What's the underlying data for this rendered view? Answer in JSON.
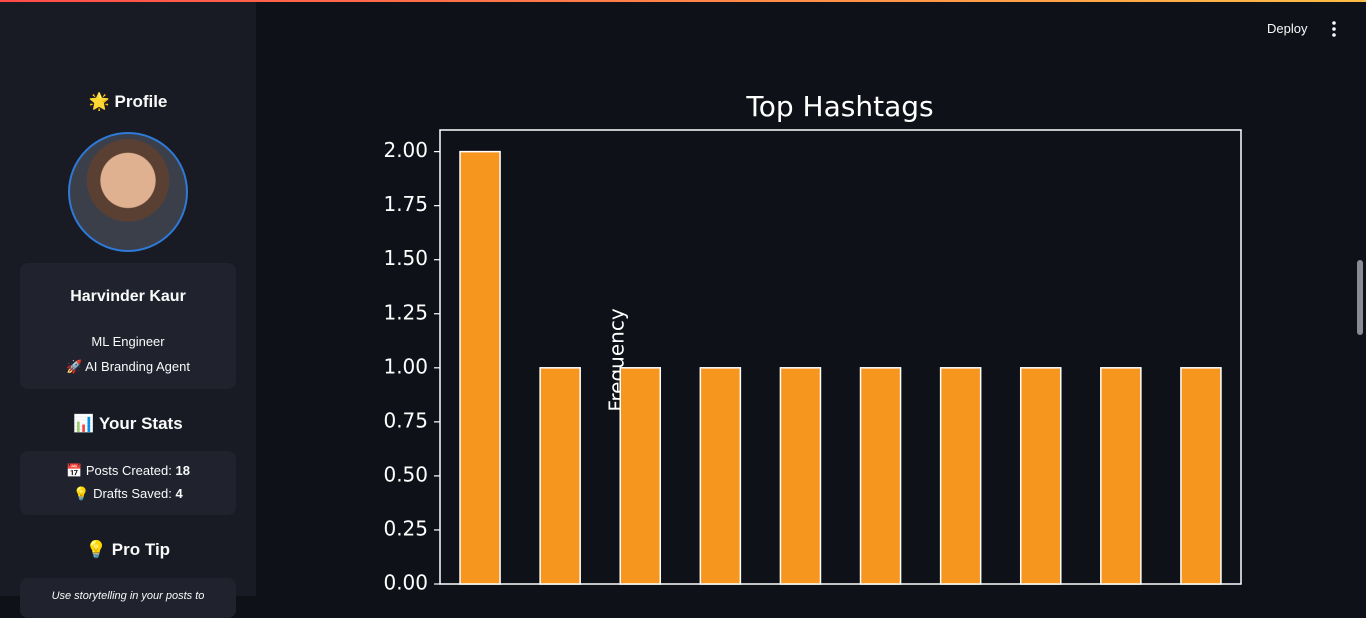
{
  "header": {
    "deploy": "Deploy"
  },
  "sidebar": {
    "profile_heading": "🌟 Profile",
    "name": "Harvinder Kaur",
    "role": "ML Engineer",
    "tagline": "🚀 AI Branding Agent",
    "stats_heading": "📊 Your Stats",
    "stats": [
      {
        "label": "📅 Posts Created:",
        "value": 18
      },
      {
        "label": "💡 Drafts Saved:",
        "value": 4
      }
    ],
    "tip_heading": "💡 Pro Tip",
    "tip_text": "Use storytelling in your posts to"
  },
  "chart_data": {
    "type": "bar",
    "title": "Top Hashtags",
    "ylabel": "Frequency",
    "categories": [
      null,
      null,
      null,
      null,
      null,
      null,
      null,
      null,
      null,
      null
    ],
    "values": [
      2,
      1,
      1,
      1,
      1,
      1,
      1,
      1,
      1,
      1
    ],
    "color": "#f7961f",
    "ylim": [
      0,
      2.1
    ],
    "yticks": [
      {
        "value": 0,
        "label": "0.00"
      },
      {
        "value": 0.25,
        "label": "0.25"
      },
      {
        "value": 0.5,
        "label": "0.50"
      },
      {
        "value": 0.75,
        "label": "0.75"
      },
      {
        "value": 1,
        "label": "1.00"
      },
      {
        "value": 1.25,
        "label": "1.25"
      },
      {
        "value": 1.5,
        "label": "1.50"
      },
      {
        "value": 1.75,
        "label": "1.75"
      },
      {
        "value": 2,
        "label": "2.00"
      }
    ],
    "grid": false
  }
}
